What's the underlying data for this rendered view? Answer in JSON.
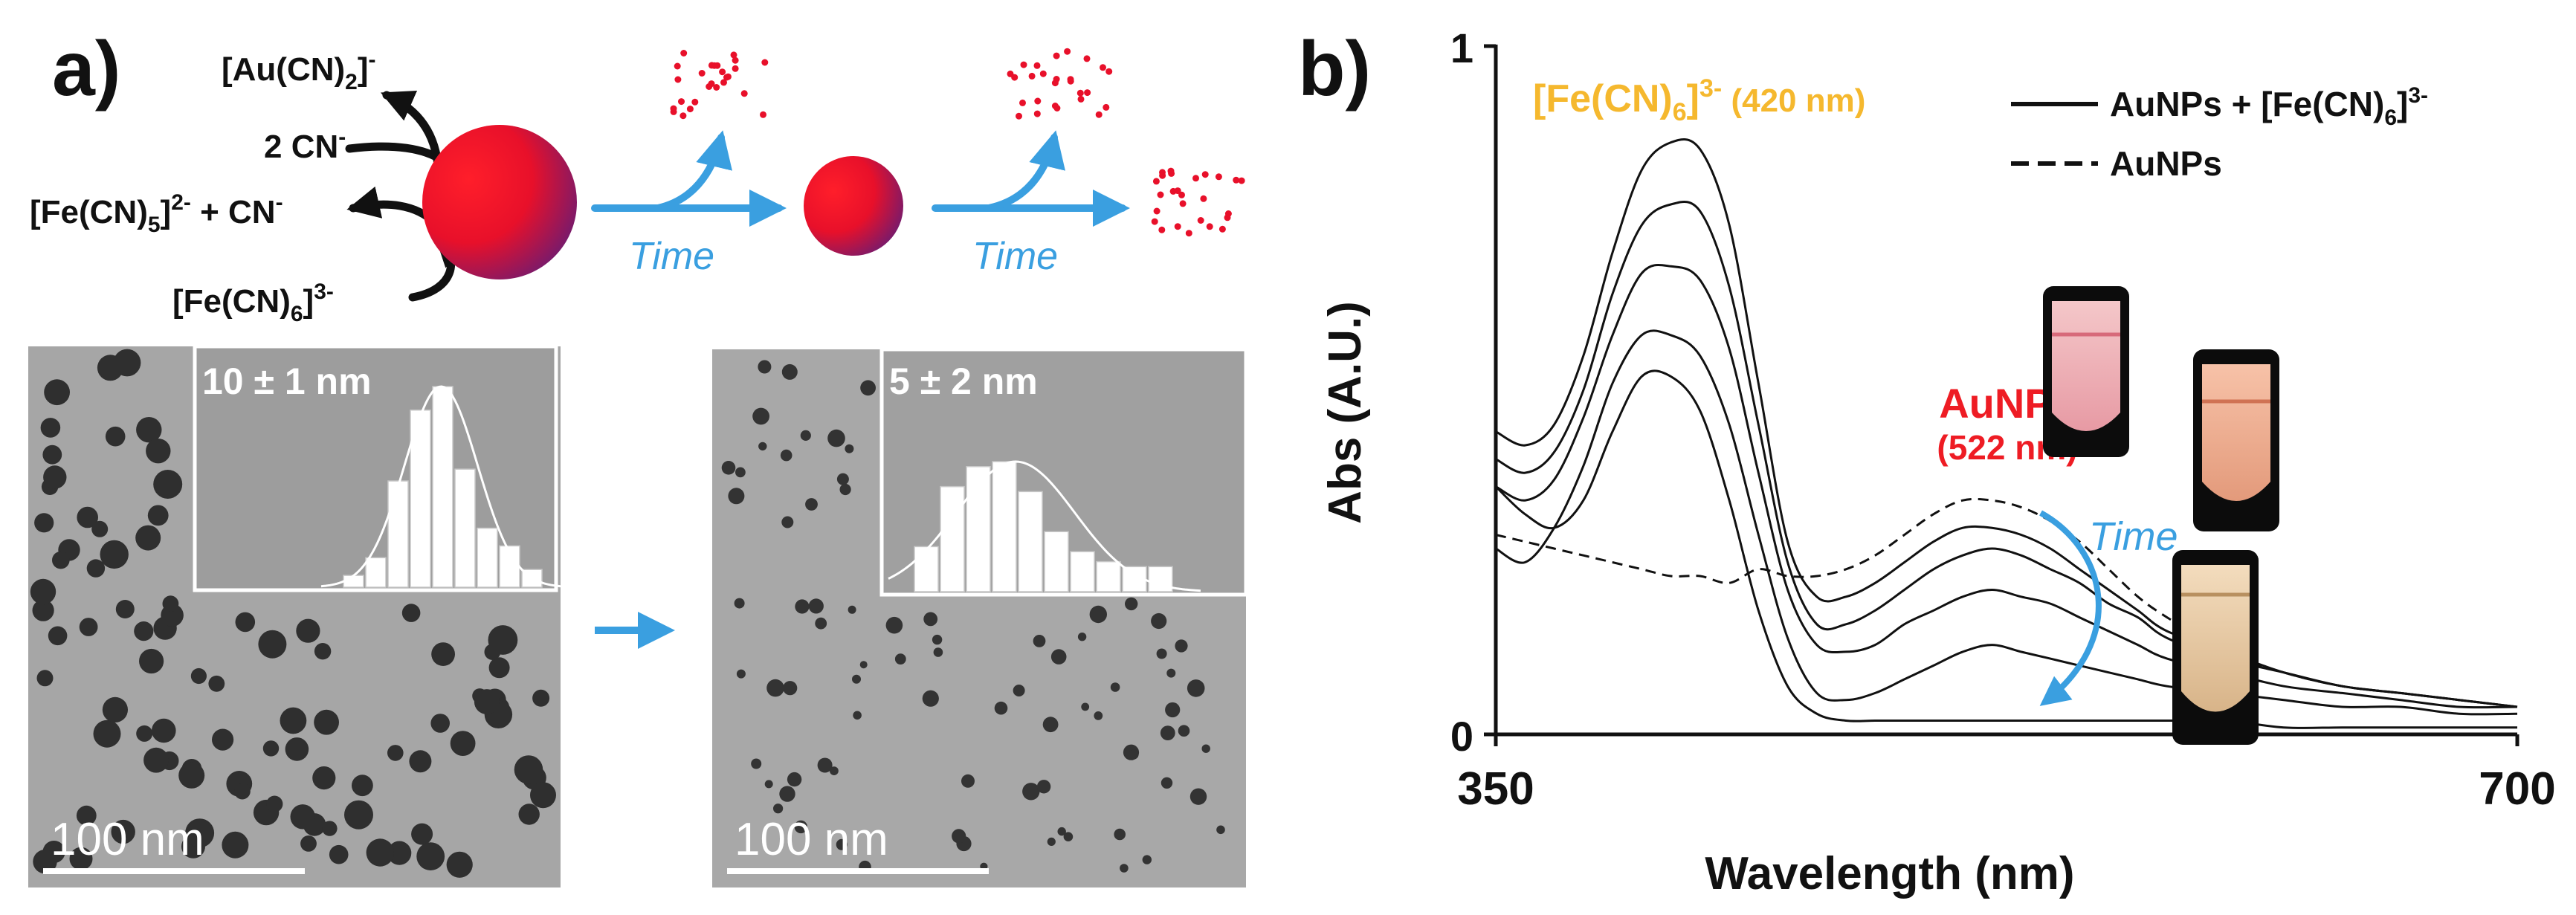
{
  "figure": {
    "panel_a": {
      "label": "a)",
      "reactions": {
        "product_1_base": "[Au(CN)",
        "product_1_sub": "2",
        "product_1_sup": "-",
        "reagent_1_base": "2 CN",
        "reagent_1_sup": "-",
        "product_2_base": "[Fe(CN)",
        "product_2_sub": "5",
        "product_2_bracket": "]",
        "product_2_sup": "2-",
        "product_2_rest": " + CN",
        "product_2_rest_sup": "-",
        "reagent_2_base": "[Fe(CN)",
        "reagent_2_sub": "6",
        "reagent_2_bracket": "]",
        "reagent_2_sup": "3-"
      },
      "arrow_label_1": "Time",
      "arrow_label_2": "Time",
      "tem_left": {
        "size_label": "10 ± 1 nm",
        "scale_bar": "100 nm",
        "histogram": [
          2,
          5,
          18,
          30,
          34,
          20,
          10,
          7,
          3
        ]
      },
      "tem_right": {
        "size_label": "5 ± 2 nm",
        "scale_bar": "100 nm",
        "histogram": [
          9,
          21,
          25,
          26,
          20,
          12,
          8,
          6,
          5,
          5
        ]
      },
      "colors": {
        "particle": "#e8102a",
        "particle_shade": "#7a1a6a",
        "arrow": "#3a9fe0"
      }
    },
    "panel_b": {
      "label": "b)"
    }
  },
  "chart_data": {
    "type": "line",
    "title": "",
    "xlabel": "Wavelength (nm)",
    "ylabel": "Abs (A.U.)",
    "xlim": [
      350,
      700
    ],
    "ylim": [
      0,
      1
    ],
    "xticks": [
      "350",
      "700"
    ],
    "yticks": [
      "0",
      "1"
    ],
    "legend": [
      {
        "label_base": "AuNPs + [Fe(CN)",
        "label_sub": "6",
        "label_bracket": "]",
        "label_sup": "3-",
        "style": "solid"
      },
      {
        "label": "AuNPs",
        "style": "dashed"
      }
    ],
    "annotations": {
      "fe_peak_base": "[Fe(CN)",
      "fe_peak_sub": "6",
      "fe_peak_bracket": "]",
      "fe_peak_sup": "3-",
      "fe_peak_nm": " (420 nm)",
      "aunp_label": "AuNPs",
      "aunp_nm": "(522 nm)",
      "time_label": "Time"
    },
    "x": [
      350,
      360,
      370,
      380,
      390,
      400,
      410,
      420,
      430,
      440,
      450,
      460,
      470,
      480,
      490,
      500,
      510,
      520,
      530,
      540,
      550,
      560,
      570,
      580,
      600,
      620,
      640,
      660,
      680,
      700
    ],
    "series": [
      {
        "name": "AuNPs + [Fe(CN)6]3- t1",
        "style": "solid",
        "values": [
          0.44,
          0.42,
          0.45,
          0.55,
          0.7,
          0.82,
          0.86,
          0.85,
          0.74,
          0.51,
          0.28,
          0.2,
          0.2,
          0.22,
          0.25,
          0.28,
          0.3,
          0.3,
          0.29,
          0.27,
          0.24,
          0.21,
          0.18,
          0.15,
          0.12,
          0.09,
          0.07,
          0.06,
          0.05,
          0.04
        ]
      },
      {
        "name": "AuNPs + [Fe(CN)6]3- t2",
        "style": "solid",
        "values": [
          0.4,
          0.38,
          0.41,
          0.5,
          0.64,
          0.74,
          0.77,
          0.76,
          0.65,
          0.45,
          0.25,
          0.16,
          0.16,
          0.18,
          0.21,
          0.24,
          0.26,
          0.27,
          0.26,
          0.24,
          0.22,
          0.19,
          0.17,
          0.14,
          0.11,
          0.09,
          0.07,
          0.06,
          0.05,
          0.04
        ]
      },
      {
        "name": "AuNPs + [Fe(CN)6]3- t3",
        "style": "solid",
        "values": [
          0.36,
          0.34,
          0.37,
          0.46,
          0.58,
          0.67,
          0.68,
          0.66,
          0.56,
          0.38,
          0.21,
          0.13,
          0.12,
          0.13,
          0.16,
          0.18,
          0.2,
          0.21,
          0.2,
          0.19,
          0.17,
          0.15,
          0.13,
          0.11,
          0.09,
          0.07,
          0.06,
          0.05,
          0.04,
          0.04
        ]
      },
      {
        "name": "AuNPs + [Fe(CN)6]3- t4",
        "style": "solid",
        "values": [
          0.27,
          0.25,
          0.3,
          0.39,
          0.51,
          0.58,
          0.58,
          0.55,
          0.45,
          0.29,
          0.14,
          0.06,
          0.05,
          0.06,
          0.08,
          0.1,
          0.12,
          0.13,
          0.12,
          0.11,
          0.1,
          0.09,
          0.08,
          0.07,
          0.06,
          0.05,
          0.04,
          0.04,
          0.03,
          0.03
        ]
      },
      {
        "name": "AuNPs + [Fe(CN)6]3- t5",
        "style": "solid",
        "values": [
          0.36,
          0.32,
          0.3,
          0.34,
          0.44,
          0.52,
          0.52,
          0.47,
          0.34,
          0.18,
          0.07,
          0.03,
          0.02,
          0.02,
          0.02,
          0.02,
          0.02,
          0.02,
          0.02,
          0.02,
          0.02,
          0.02,
          0.02,
          0.02,
          0.02,
          0.01,
          0.01,
          0.01,
          0.01,
          0.01
        ]
      },
      {
        "name": "AuNPs",
        "style": "dashed",
        "values": [
          0.29,
          0.28,
          0.27,
          0.26,
          0.25,
          0.24,
          0.23,
          0.23,
          0.22,
          0.24,
          0.23,
          0.23,
          0.24,
          0.26,
          0.29,
          0.32,
          0.34,
          0.34,
          0.33,
          0.31,
          0.28,
          0.24,
          0.2,
          0.17,
          0.12,
          0.09,
          0.07,
          0.06,
          0.05,
          0.04
        ]
      }
    ]
  }
}
